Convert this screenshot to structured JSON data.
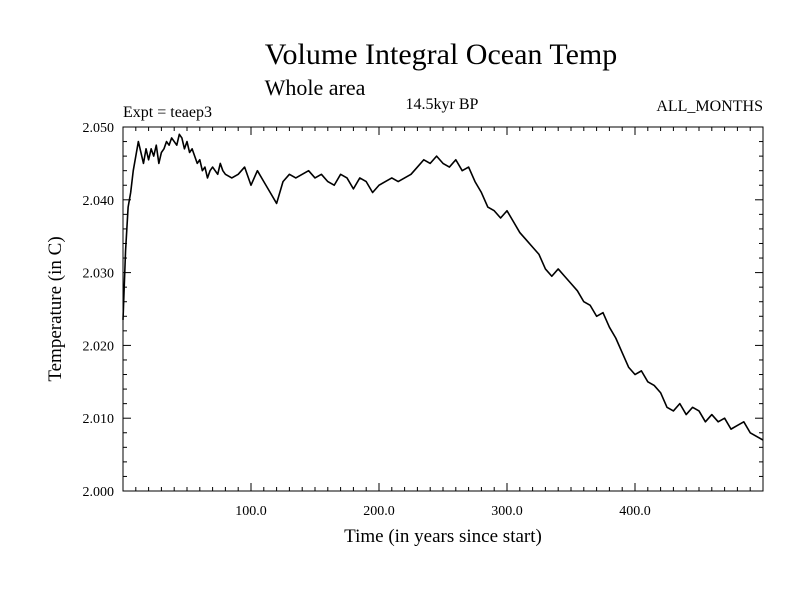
{
  "chart_data": {
    "type": "line",
    "title": "Volume Integral Ocean Temp",
    "subtitle": "Whole area",
    "period_label": "14.5kyr BP",
    "experiment_label": "Expt = teaep3",
    "months_label": "ALL_MONTHS",
    "xlabel": "Time (in years since start)",
    "ylabel": "Temperature (in C)",
    "xlim": [
      0,
      500
    ],
    "ylim": [
      2.0,
      2.05
    ],
    "x_ticks": [
      100,
      200,
      300,
      400
    ],
    "x_tick_labels": [
      "100.0",
      "200.0",
      "300.0",
      "400.0"
    ],
    "y_ticks": [
      2.0,
      2.01,
      2.02,
      2.03,
      2.04,
      2.05
    ],
    "y_tick_labels": [
      "2.000",
      "2.010",
      "2.020",
      "2.030",
      "2.040",
      "2.050"
    ],
    "grid": false,
    "series": [
      {
        "name": "Volume integral ocean temperature",
        "color": "#000000",
        "x": [
          0,
          2,
          4,
          6,
          8,
          10,
          12,
          14,
          16,
          18,
          20,
          22,
          24,
          26,
          28,
          30,
          32,
          34,
          36,
          38,
          40,
          42,
          44,
          46,
          48,
          50,
          52,
          54,
          56,
          58,
          60,
          62,
          64,
          66,
          68,
          70,
          72,
          74,
          76,
          78,
          80,
          85,
          90,
          95,
          100,
          105,
          110,
          115,
          120,
          125,
          130,
          135,
          140,
          145,
          150,
          155,
          160,
          165,
          170,
          175,
          180,
          185,
          190,
          195,
          200,
          205,
          210,
          215,
          220,
          225,
          230,
          235,
          240,
          245,
          250,
          255,
          260,
          265,
          270,
          275,
          280,
          285,
          290,
          295,
          300,
          305,
          310,
          315,
          320,
          325,
          330,
          335,
          340,
          345,
          350,
          355,
          360,
          365,
          370,
          375,
          380,
          385,
          390,
          395,
          400,
          405,
          410,
          415,
          420,
          425,
          430,
          435,
          440,
          445,
          450,
          455,
          460,
          465,
          470,
          475,
          480,
          485,
          490,
          495,
          500
        ],
        "y": [
          2.0235,
          2.033,
          2.039,
          2.041,
          2.044,
          2.046,
          2.048,
          2.0465,
          2.045,
          2.047,
          2.0455,
          2.047,
          2.046,
          2.0475,
          2.045,
          2.0465,
          2.047,
          2.048,
          2.0475,
          2.0485,
          2.048,
          2.0475,
          2.049,
          2.0485,
          2.047,
          2.048,
          2.0465,
          2.047,
          2.046,
          2.045,
          2.0455,
          2.044,
          2.0445,
          2.043,
          2.044,
          2.0445,
          2.044,
          2.0435,
          2.045,
          2.044,
          2.0435,
          2.043,
          2.0435,
          2.0445,
          2.042,
          2.044,
          2.0425,
          2.041,
          2.0395,
          2.0425,
          2.0435,
          2.043,
          2.0435,
          2.044,
          2.043,
          2.0435,
          2.0425,
          2.042,
          2.0435,
          2.043,
          2.0415,
          2.043,
          2.0425,
          2.041,
          2.042,
          2.0425,
          2.043,
          2.0425,
          2.043,
          2.0435,
          2.0445,
          2.0455,
          2.045,
          2.046,
          2.045,
          2.0445,
          2.0455,
          2.044,
          2.0445,
          2.0425,
          2.041,
          2.039,
          2.0385,
          2.0375,
          2.0385,
          2.037,
          2.0355,
          2.0345,
          2.0335,
          2.0325,
          2.0305,
          2.0295,
          2.0305,
          2.0295,
          2.0285,
          2.0275,
          2.026,
          2.0255,
          2.024,
          2.0245,
          2.0225,
          2.021,
          2.019,
          2.017,
          2.016,
          2.0165,
          2.015,
          2.0145,
          2.0135,
          2.0115,
          2.011,
          2.012,
          2.0105,
          2.0115,
          2.011,
          2.0095,
          2.0105,
          2.0095,
          2.01,
          2.0085,
          2.009,
          2.0095,
          2.008,
          2.0075,
          2.007
        ]
      }
    ]
  }
}
